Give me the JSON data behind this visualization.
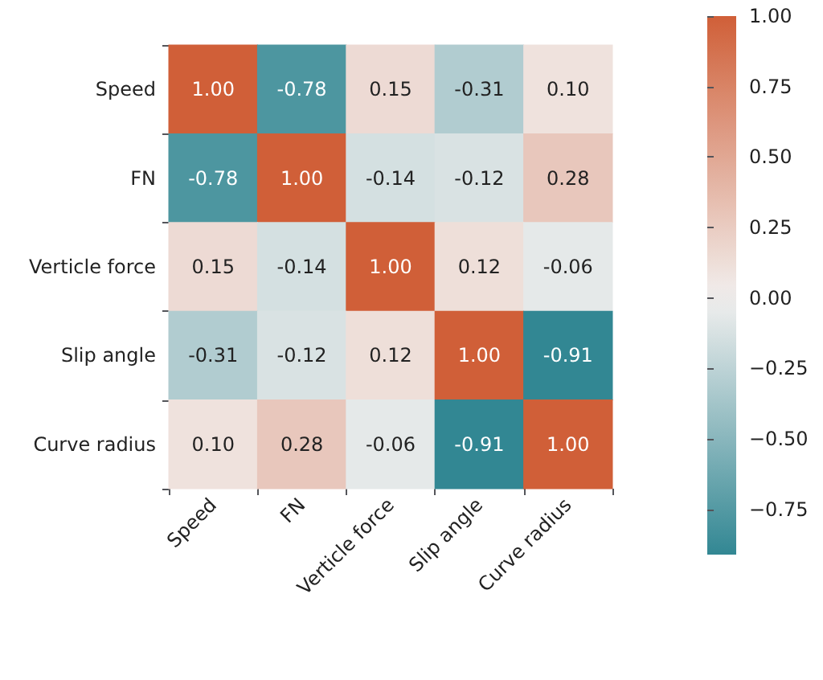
{
  "chart_data": {
    "type": "heatmap",
    "categories": [
      "Speed",
      "FN",
      "Verticle force",
      "Slip angle",
      "Curve radius"
    ],
    "y_categories": [
      "Speed",
      "FN",
      "Verticle force",
      "Slip angle",
      "Curve radius"
    ],
    "cells": [
      [
        1.0,
        -0.78,
        0.15,
        -0.31,
        0.1
      ],
      [
        -0.78,
        1.0,
        -0.14,
        -0.12,
        0.28
      ],
      [
        0.15,
        -0.14,
        1.0,
        0.12,
        -0.06
      ],
      [
        -0.31,
        -0.12,
        0.12,
        1.0,
        -0.91
      ],
      [
        0.1,
        0.28,
        -0.06,
        -0.91,
        1.0
      ]
    ],
    "cell_labels": [
      [
        "1.00",
        "-0.78",
        "0.15",
        "-0.31",
        "0.10"
      ],
      [
        "-0.78",
        "1.00",
        "-0.14",
        "-0.12",
        "0.28"
      ],
      [
        "0.15",
        "-0.14",
        "1.00",
        "0.12",
        "-0.06"
      ],
      [
        "-0.31",
        "-0.12",
        "0.12",
        "1.00",
        "-0.91"
      ],
      [
        "0.10",
        "0.28",
        "-0.06",
        "-0.91",
        "1.00"
      ]
    ],
    "clim": [
      -0.91,
      1.0
    ],
    "cticks": [
      {
        "value": -0.75,
        "label": "−0.75"
      },
      {
        "value": -0.5,
        "label": "−0.50"
      },
      {
        "value": -0.25,
        "label": "−0.25"
      },
      {
        "value": 0,
        "label": "0.00"
      },
      {
        "value": 0.25,
        "label": "0.25"
      },
      {
        "value": 0.5,
        "label": "0.50"
      },
      {
        "value": 0.75,
        "label": "0.75"
      },
      {
        "value": 1,
        "label": "1.00"
      }
    ]
  }
}
